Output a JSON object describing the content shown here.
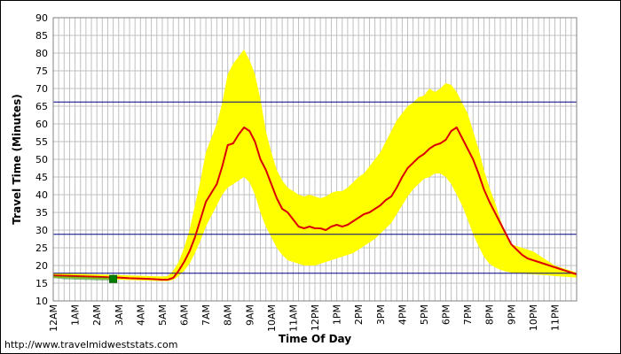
{
  "chart_data": {
    "type": "line",
    "xlabel": "Time Of Day",
    "ylabel": "Travel Time (Minutes)",
    "source_text": "http://www.travelmidweststats.com",
    "xlim": [
      0,
      24
    ],
    "ylim": [
      10,
      90
    ],
    "y_ticks": [
      10,
      15,
      20,
      25,
      30,
      35,
      40,
      45,
      50,
      55,
      60,
      65,
      70,
      75,
      80,
      85,
      90
    ],
    "x_tick_labels": [
      "12AM",
      "1AM",
      "2AM",
      "3AM",
      "4AM",
      "5AM",
      "6AM",
      "7AM",
      "8AM",
      "9AM",
      "10AM",
      "11AM",
      "12PM",
      "1PM",
      "2PM",
      "3PM",
      "4PM",
      "5PM",
      "6PM",
      "7PM",
      "8PM",
      "9PM",
      "10PM",
      "11PM"
    ],
    "grid": true,
    "colors": {
      "median": "#dd0000",
      "band": "#ffff00",
      "reference": "#000080",
      "current": "#008000",
      "current_band": "#228b22",
      "grid": "#c0c0c0"
    },
    "reference_lines": [
      17.8,
      28.8,
      66.2
    ],
    "current_marker": {
      "x": 2.75,
      "y": 16.2
    },
    "current_band": [
      {
        "x": 0,
        "low": 16.4,
        "high": 17.2
      },
      {
        "x": 0.25,
        "low": 16.3,
        "high": 17.0
      },
      {
        "x": 0.5,
        "low": 16.1,
        "high": 17.0
      },
      {
        "x": 0.75,
        "low": 16.1,
        "high": 16.9
      },
      {
        "x": 1.0,
        "low": 16.0,
        "high": 16.9
      },
      {
        "x": 1.25,
        "low": 16.0,
        "high": 16.8
      },
      {
        "x": 1.5,
        "low": 15.9,
        "high": 16.8
      },
      {
        "x": 1.75,
        "low": 15.9,
        "high": 16.7
      },
      {
        "x": 2.0,
        "low": 15.8,
        "high": 16.7
      },
      {
        "x": 2.25,
        "low": 15.8,
        "high": 16.7
      },
      {
        "x": 2.5,
        "low": 15.8,
        "high": 16.6
      },
      {
        "x": 2.75,
        "low": 15.8,
        "high": 16.6
      }
    ],
    "series": [
      {
        "name": "",
        "x": [
          0,
          0.5,
          1,
          1.5,
          2,
          2.5,
          3,
          3.5,
          4,
          4.5,
          5,
          5.25,
          5.5,
          5.75,
          6,
          6.25,
          6.5,
          6.75,
          7,
          7.25,
          7.5,
          7.75,
          8,
          8.25,
          8.5,
          8.75,
          9,
          9.25,
          9.5,
          9.75,
          10,
          10.25,
          10.5,
          10.75,
          11,
          11.25,
          11.5,
          11.75,
          12,
          12.25,
          12.5,
          12.75,
          13,
          13.25,
          13.5,
          13.75,
          14,
          14.25,
          14.5,
          14.75,
          15,
          15.25,
          15.5,
          15.75,
          16,
          16.25,
          16.5,
          16.75,
          17,
          17.25,
          17.5,
          17.75,
          18,
          18.25,
          18.5,
          18.75,
          19,
          19.25,
          19.5,
          19.75,
          20,
          20.25,
          20.5,
          20.75,
          21,
          21.25,
          21.5,
          21.75,
          22,
          22.25,
          22.5,
          22.75,
          23,
          23.25,
          23.5,
          23.75,
          24
        ],
        "median": [
          17.2,
          17.1,
          17.0,
          16.9,
          16.8,
          16.7,
          16.6,
          16.4,
          16.3,
          16.2,
          16.0,
          16.0,
          16.5,
          18.5,
          21.0,
          24.0,
          28.0,
          33.0,
          38.0,
          40.5,
          43.0,
          48.0,
          54.0,
          54.5,
          57.0,
          59.0,
          58.0,
          55.0,
          50.0,
          47.0,
          43.0,
          39.0,
          36.0,
          35.0,
          33.0,
          31.0,
          30.5,
          31.0,
          30.5,
          30.5,
          30.0,
          31.0,
          31.5,
          31.0,
          31.5,
          32.5,
          33.5,
          34.5,
          35.0,
          36.0,
          37.0,
          38.5,
          39.5,
          42.0,
          45.0,
          47.5,
          49.0,
          50.5,
          51.5,
          53.0,
          54.0,
          54.5,
          55.5,
          58.0,
          59.0,
          56.0,
          53.0,
          50.0,
          46.0,
          41.5,
          38.0,
          35.0,
          32.0,
          29.0,
          26.0,
          24.5,
          23.0,
          22.0,
          21.5,
          21.0,
          20.5,
          20.0,
          19.5,
          19.0,
          18.5,
          18.0,
          17.5
        ],
        "low": [
          16.6,
          16.5,
          16.4,
          16.3,
          16.2,
          16.1,
          16.0,
          15.9,
          15.8,
          15.7,
          15.6,
          15.6,
          15.9,
          17.0,
          18.5,
          20.5,
          23.5,
          27.0,
          31.0,
          34.0,
          37.0,
          40.0,
          42.0,
          43.0,
          44.0,
          45.0,
          43.5,
          40.0,
          35.0,
          31.0,
          28.0,
          25.0,
          23.0,
          21.5,
          21.0,
          20.5,
          20.0,
          20.0,
          20.0,
          20.5,
          21.0,
          21.5,
          22.0,
          22.5,
          23.0,
          23.5,
          24.5,
          25.5,
          26.5,
          27.5,
          29.0,
          30.5,
          32.0,
          34.5,
          37.0,
          39.5,
          41.5,
          43.0,
          44.5,
          45.0,
          46.0,
          46.0,
          45.0,
          43.0,
          40.0,
          37.0,
          33.0,
          29.0,
          25.5,
          22.5,
          20.5,
          19.5,
          18.8,
          18.3,
          18.0,
          17.8,
          17.7,
          17.6,
          17.5,
          17.4,
          17.3,
          17.2,
          17.0,
          16.9,
          16.8,
          16.7,
          16.6
        ],
        "high": [
          17.8,
          17.8,
          17.7,
          17.6,
          17.5,
          17.4,
          17.3,
          17.2,
          17.1,
          17.0,
          16.9,
          17.0,
          18.5,
          21.0,
          25.0,
          30.0,
          37.0,
          44.0,
          52.0,
          56.0,
          60.0,
          66.0,
          74.0,
          77.0,
          79.0,
          81.0,
          78.0,
          74.0,
          67.0,
          58.0,
          52.0,
          47.0,
          44.0,
          42.0,
          41.0,
          40.0,
          39.5,
          40.0,
          39.5,
          39.0,
          39.5,
          40.5,
          41.0,
          41.0,
          42.0,
          43.5,
          45.0,
          46.0,
          48.0,
          50.0,
          52.0,
          55.0,
          58.0,
          61.0,
          63.0,
          65.0,
          66.0,
          67.5,
          68.0,
          70.0,
          69.0,
          70.0,
          71.5,
          71.0,
          69.0,
          66.0,
          63.0,
          58.0,
          53.0,
          47.0,
          42.0,
          38.0,
          33.0,
          29.0,
          26.0,
          25.5,
          25.0,
          24.5,
          24.0,
          23.0,
          22.0,
          21.0,
          20.0,
          19.5,
          19.0,
          18.5,
          18.0
        ]
      }
    ]
  }
}
